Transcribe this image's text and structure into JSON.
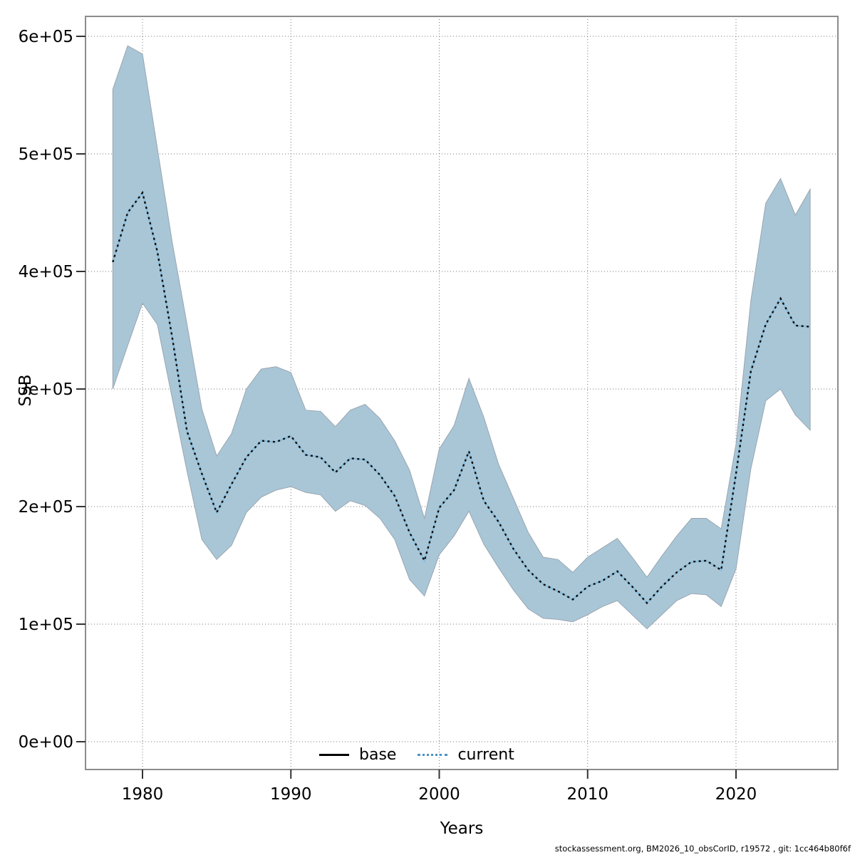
{
  "footer": {
    "text": "stockassessment.org, BM2026_10_obsCorID, r19572 , git: 1cc464b80f6f"
  },
  "legend": {
    "items": [
      {
        "label": "base",
        "line": "solid",
        "color": "#000000"
      },
      {
        "label": "current",
        "line": "dotted",
        "color": "#4e93c3"
      }
    ]
  },
  "chart_data": {
    "type": "line",
    "title": "",
    "xlabel": "Years",
    "ylabel": "SSB",
    "xlim": [
      1976,
      2027
    ],
    "ylim": [
      -24000,
      617000
    ],
    "grid": "dotted",
    "legend_position": "bottom-center-inside",
    "x_ticks": [
      1980,
      1990,
      2000,
      2010,
      2020
    ],
    "y_ticks": {
      "values": [
        0,
        100000,
        200000,
        300000,
        400000,
        500000,
        600000
      ],
      "labels": [
        "0e+00",
        "1e+05",
        "2e+05",
        "3e+05",
        "4e+05",
        "5e+05",
        "6e+05"
      ]
    },
    "years": [
      1978,
      1979,
      1980,
      1981,
      1982,
      1983,
      1984,
      1985,
      1986,
      1987,
      1988,
      1989,
      1990,
      1991,
      1992,
      1993,
      1994,
      1995,
      1996,
      1997,
      1998,
      1999,
      2000,
      2001,
      2002,
      2003,
      2004,
      2005,
      2006,
      2007,
      2008,
      2009,
      2010,
      2011,
      2012,
      2013,
      2014,
      2015,
      2016,
      2017,
      2018,
      2019,
      2020,
      2021,
      2022,
      2023,
      2024,
      2025
    ],
    "series": [
      {
        "name": "current",
        "line": "dotted",
        "color": "#4e93c3",
        "band_color": "#a9c6d7",
        "values": [
          408000,
          450000,
          467000,
          417000,
          344000,
          264000,
          228000,
          195000,
          219000,
          242000,
          256000,
          255000,
          260000,
          244000,
          242000,
          229000,
          241000,
          240000,
          227000,
          209000,
          178000,
          154000,
          199000,
          214000,
          247000,
          205000,
          187000,
          164000,
          146000,
          134000,
          128000,
          121000,
          132000,
          137000,
          145000,
          132000,
          118000,
          132000,
          144000,
          153000,
          154000,
          146000,
          228000,
          315000,
          355000,
          377000,
          354000,
          353000
        ],
        "lower": [
          300000,
          337000,
          373000,
          355000,
          292000,
          230000,
          172000,
          155000,
          167000,
          195000,
          208000,
          214000,
          217000,
          212000,
          210000,
          196000,
          205000,
          201000,
          190000,
          172000,
          138000,
          124000,
          159000,
          175000,
          196000,
          168000,
          148000,
          129000,
          113000,
          105000,
          104000,
          102000,
          108000,
          115000,
          120000,
          108000,
          96000,
          108000,
          120000,
          126000,
          125000,
          115000,
          147000,
          232000,
          290000,
          300000,
          278000,
          265000
        ],
        "upper": [
          555000,
          592000,
          585000,
          505000,
          425000,
          355000,
          283000,
          243000,
          262000,
          300000,
          317000,
          319000,
          314000,
          282000,
          281000,
          268000,
          282000,
          287000,
          275000,
          256000,
          231000,
          190000,
          249000,
          269000,
          309000,
          276000,
          236000,
          207000,
          178000,
          157000,
          155000,
          144000,
          157000,
          165000,
          173000,
          157000,
          140000,
          158000,
          175000,
          190000,
          190000,
          181000,
          253000,
          375000,
          458000,
          479000,
          448000,
          470000
        ]
      },
      {
        "name": "base",
        "line": "solid",
        "color": "#000000",
        "values": []
      }
    ]
  }
}
